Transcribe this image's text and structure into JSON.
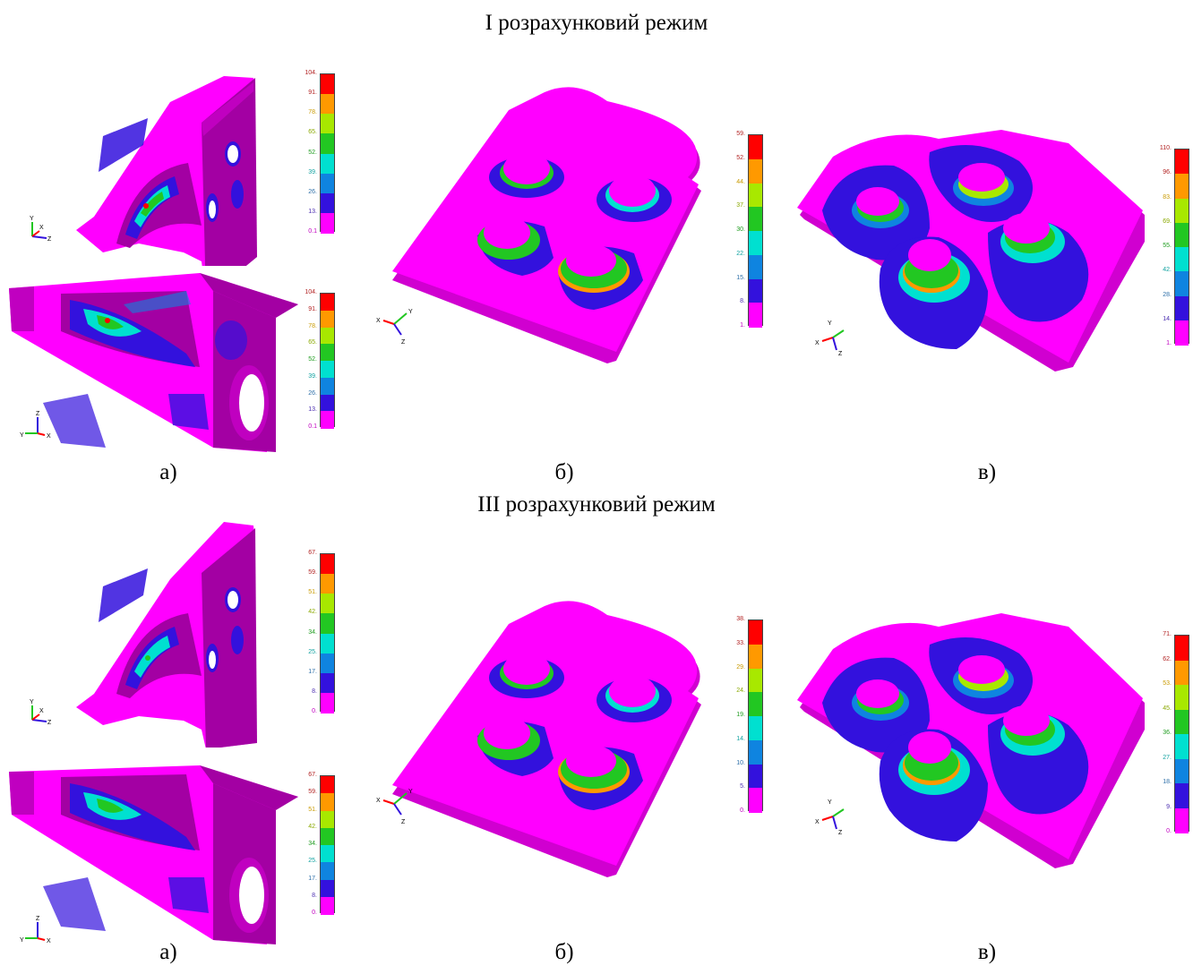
{
  "sections": [
    {
      "title": "I розрахунковий режим",
      "captions": [
        "а)",
        "б)",
        "в)"
      ],
      "legends": {
        "a_top": [
          "104.",
          "91.",
          "78.",
          "65.",
          "52.",
          "39.",
          "26.",
          "13.",
          "0.1"
        ],
        "a_bottom": [
          "104.",
          "91.",
          "78.",
          "65.",
          "52.",
          "39.",
          "26.",
          "13.",
          "0.1"
        ],
        "b": [
          "59.",
          "52.",
          "44.",
          "37.",
          "30.",
          "22.",
          "15.",
          "8.",
          "1."
        ],
        "c": [
          "110.",
          "96.",
          "83.",
          "69.",
          "55.",
          "42.",
          "28.",
          "14.",
          "1."
        ]
      }
    },
    {
      "title": "III розрахунковий режим",
      "captions": [
        "а)",
        "б)",
        "в)"
      ],
      "legends": {
        "a_top": [
          "67.",
          "59.",
          "51.",
          "42.",
          "34.",
          "25.",
          "17.",
          "8.",
          "0."
        ],
        "a_bottom": [
          "67.",
          "59.",
          "51.",
          "42.",
          "34.",
          "25.",
          "17.",
          "8.",
          "0."
        ],
        "b": [
          "38.",
          "33.",
          "29.",
          "24.",
          "19.",
          "14.",
          "10.",
          "5.",
          "0."
        ],
        "c": [
          "71.",
          "62.",
          "53.",
          "45.",
          "36.",
          "27.",
          "18.",
          "9.",
          "0."
        ]
      }
    }
  ],
  "axes": {
    "side": [
      "Y",
      "X",
      "Z"
    ],
    "bottom": [
      "Z",
      "Y",
      "X"
    ],
    "plate": [
      "X",
      "Y",
      "Z"
    ]
  },
  "colors": {
    "scale": [
      "#ff0000",
      "#ff9900",
      "#a8e800",
      "#22c722",
      "#00e0d0",
      "#0f84e0",
      "#3311dd",
      "#ff00ff"
    ],
    "label_colors": [
      "#b22222",
      "#b22222",
      "#c99a00",
      "#8aa800",
      "#1f9c1f",
      "#11a2a0",
      "#2d6fa8",
      "#4a2db0",
      "#c000c0"
    ],
    "part_magenta": "#ff00ff",
    "part_dark": "#a300a3",
    "blue": "#3311dd"
  }
}
